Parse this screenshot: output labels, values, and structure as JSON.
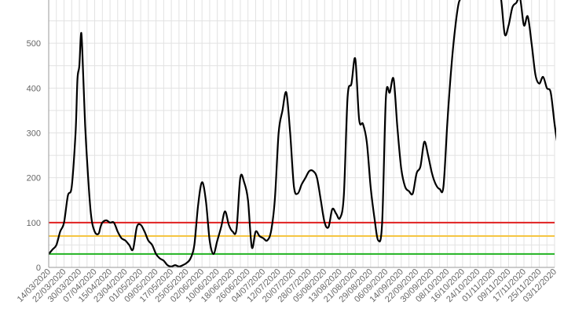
{
  "chart_data": {
    "type": "line",
    "title": "",
    "xlabel": "",
    "ylabel": "",
    "ylim": [
      0,
      600
    ],
    "grid": true,
    "y_ticks": [
      0,
      100,
      200,
      300,
      400,
      500
    ],
    "x_tick_labels": [
      "14/03/2020",
      "22/03/2020",
      "30/03/2020",
      "07/04/2020",
      "15/04/2020",
      "23/04/2020",
      "01/05/2020",
      "09/05/2020",
      "17/05/2020",
      "25/05/2020",
      "02/06/2020",
      "10/06/2020",
      "18/06/2020",
      "26/06/2020",
      "04/07/2020",
      "12/07/2020",
      "20/07/2020",
      "28/07/2020",
      "05/08/2020",
      "13/08/2020",
      "21/08/2020",
      "29/08/2020",
      "06/09/2020",
      "14/09/2020",
      "22/09/2020",
      "30/09/2020",
      "08/10/2020",
      "16/10/2020",
      "24/10/2020",
      "01/11/2020",
      "09/11/2020",
      "17/11/2020",
      "25/11/2020",
      "03/12/2020"
    ],
    "series": [
      {
        "color": "#000000",
        "x": [
          "2020-03-14",
          "2020-03-16",
          "2020-03-18",
          "2020-03-20",
          "2020-03-22",
          "2020-03-24",
          "2020-03-26",
          "2020-03-28",
          "2020-03-29",
          "2020-03-30",
          "2020-03-31",
          "2020-04-01",
          "2020-04-02",
          "2020-04-03",
          "2020-04-05",
          "2020-04-07",
          "2020-04-09",
          "2020-04-10",
          "2020-04-11",
          "2020-04-13",
          "2020-04-15",
          "2020-04-17",
          "2020-04-19",
          "2020-04-21",
          "2020-04-23",
          "2020-04-25",
          "2020-04-27",
          "2020-04-29",
          "2020-05-01",
          "2020-05-03",
          "2020-05-05",
          "2020-05-07",
          "2020-05-09",
          "2020-05-11",
          "2020-05-13",
          "2020-05-15",
          "2020-05-17",
          "2020-05-19",
          "2020-05-21",
          "2020-05-23",
          "2020-05-25",
          "2020-05-27",
          "2020-05-29",
          "2020-05-31",
          "2020-06-02",
          "2020-06-04",
          "2020-06-06",
          "2020-06-08",
          "2020-06-10",
          "2020-06-12",
          "2020-06-14",
          "2020-06-16",
          "2020-06-18",
          "2020-06-20",
          "2020-06-22",
          "2020-06-24",
          "2020-06-26",
          "2020-06-28",
          "2020-06-30",
          "2020-07-02",
          "2020-07-04",
          "2020-07-06",
          "2020-07-08",
          "2020-07-10",
          "2020-07-12",
          "2020-07-14",
          "2020-07-16",
          "2020-07-18",
          "2020-07-20",
          "2020-07-22",
          "2020-07-24",
          "2020-07-26",
          "2020-07-28",
          "2020-07-30",
          "2020-08-01",
          "2020-08-03",
          "2020-08-05",
          "2020-08-07",
          "2020-08-09",
          "2020-08-11",
          "2020-08-13",
          "2020-08-15",
          "2020-08-17",
          "2020-08-19",
          "2020-08-21",
          "2020-08-23",
          "2020-08-25",
          "2020-08-27",
          "2020-08-29",
          "2020-08-31",
          "2020-09-02",
          "2020-09-04",
          "2020-09-06",
          "2020-09-08",
          "2020-09-10",
          "2020-09-12",
          "2020-09-14",
          "2020-09-16",
          "2020-09-18",
          "2020-09-20",
          "2020-09-22",
          "2020-09-24",
          "2020-09-26",
          "2020-09-28",
          "2020-09-30",
          "2020-10-02",
          "2020-10-04",
          "2020-10-06",
          "2020-10-08",
          "2020-10-10",
          "2020-10-12",
          "2020-10-14",
          "2020-10-16",
          "2020-10-18",
          "2020-10-20",
          "2020-10-22",
          "2020-10-24",
          "2020-10-26",
          "2020-10-28",
          "2020-10-30",
          "2020-11-01",
          "2020-11-03",
          "2020-11-05",
          "2020-11-07",
          "2020-11-09",
          "2020-11-11",
          "2020-11-13",
          "2020-11-15",
          "2020-11-17",
          "2020-11-19",
          "2020-11-21",
          "2020-11-23",
          "2020-11-25",
          "2020-11-27",
          "2020-11-29",
          "2020-12-01",
          "2020-12-03",
          "2020-12-05"
        ],
        "y": [
          30,
          40,
          50,
          80,
          100,
          160,
          180,
          300,
          420,
          450,
          523,
          430,
          320,
          240,
          120,
          80,
          75,
          90,
          100,
          105,
          100,
          100,
          80,
          65,
          60,
          50,
          40,
          90,
          95,
          80,
          60,
          50,
          30,
          20,
          15,
          5,
          2,
          5,
          2,
          5,
          10,
          20,
          50,
          140,
          190,
          150,
          60,
          30,
          60,
          90,
          125,
          95,
          80,
          85,
          200,
          190,
          150,
          45,
          80,
          70,
          65,
          60,
          80,
          150,
          300,
          350,
          390,
          300,
          180,
          165,
          185,
          200,
          215,
          215,
          200,
          150,
          100,
          90,
          130,
          120,
          110,
          160,
          380,
          410,
          465,
          330,
          320,
          280,
          180,
          110,
          60,
          100,
          380,
          390,
          420,
          310,
          220,
          180,
          170,
          165,
          210,
          225,
          280,
          250,
          210,
          185,
          175,
          180,
          320,
          440,
          530,
          590,
          600,
          600,
          600,
          600,
          600,
          600,
          600,
          600,
          600,
          600,
          600,
          520,
          540,
          580,
          590,
          600,
          540,
          560,
          500,
          430,
          410,
          425,
          400,
          390,
          320,
          260
        ]
      }
    ],
    "reference_lines": [
      {
        "value": 100,
        "color": "#e02020"
      },
      {
        "value": 70,
        "color": "#f5c542"
      },
      {
        "value": 30,
        "color": "#22b322"
      }
    ]
  }
}
